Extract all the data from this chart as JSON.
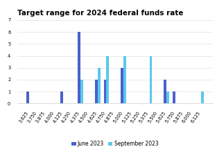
{
  "title": "Target range for 2024 federal funds rate",
  "categories": [
    "3.625",
    "3.750",
    "3.875",
    "4.000",
    "4.125",
    "4.250",
    "4.375",
    "4.500",
    "4.625",
    "4.750",
    "4.875",
    "5.000",
    "5.125",
    "5.250",
    "5.375",
    "5.500",
    "5.625",
    "5.750",
    "5.875",
    "6.000",
    "6.125"
  ],
  "june_2023": [
    1,
    0,
    0,
    0,
    1,
    0,
    6,
    0,
    2,
    2,
    0,
    3,
    0,
    0,
    0,
    0,
    2,
    1,
    0,
    0,
    0
  ],
  "september_2023": [
    0,
    0,
    0,
    0,
    0,
    0,
    2,
    0,
    3,
    4,
    0,
    4,
    0,
    0,
    4,
    0,
    1,
    0,
    0,
    0,
    1
  ],
  "june_color": "#4a60cc",
  "sep_color": "#5bc8ea",
  "ylim": [
    0,
    7
  ],
  "yticks": [
    0,
    1,
    2,
    3,
    4,
    5,
    6,
    7
  ],
  "legend_labels": [
    "June 2023",
    "September 2023"
  ],
  "title_fontsize": 7.5,
  "tick_fontsize": 4.8,
  "legend_fontsize": 5.5
}
